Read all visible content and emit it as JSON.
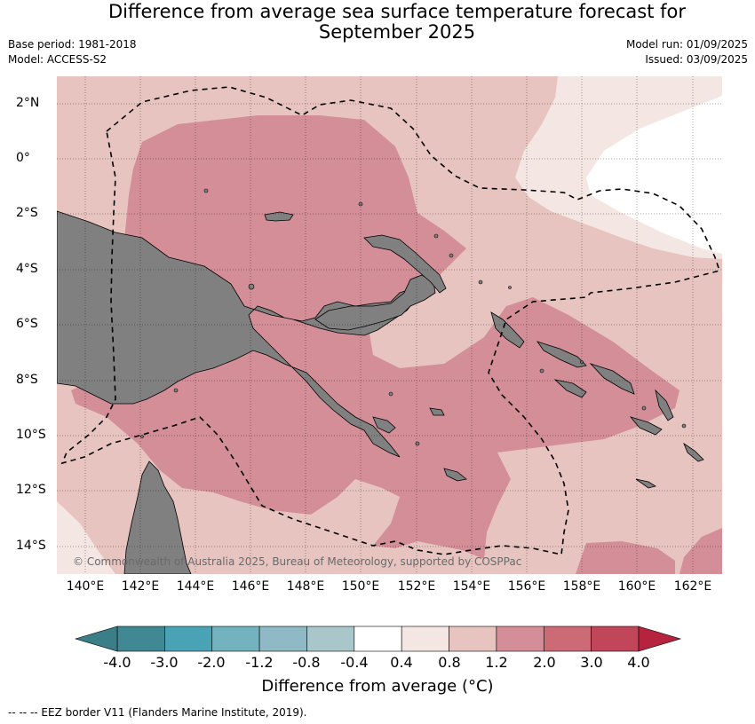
{
  "title_line1": "Difference from average sea surface temperature forecast for",
  "title_line2": "September 2025",
  "base_period": "Base period: 1981-2018",
  "model": "Model: ACCESS-S2",
  "model_run": "Model run: 01/09/2025",
  "issued": "Issued: 03/09/2025",
  "lat_labels": [
    "2°N",
    "0°",
    "2°S",
    "4°S",
    "6°S",
    "8°S",
    "10°S",
    "12°S",
    "14°S"
  ],
  "lon_labels": [
    "140°E",
    "142°E",
    "144°E",
    "146°E",
    "148°E",
    "150°E",
    "152°E",
    "154°E",
    "156°E",
    "158°E",
    "160°E",
    "162°E"
  ],
  "credit": "© Commonwealth of Australia 2025, Bureau of Meteorology, supported by COSPPac",
  "colorbar": {
    "ticks": [
      "-4.0",
      "-3.0",
      "-2.0",
      "-1.2",
      "-0.8",
      "-0.4",
      "0.4",
      "0.8",
      "1.2",
      "2.0",
      "3.0",
      "4.0"
    ],
    "colors": [
      "#418895",
      "#4aa3b4",
      "#73b3c0",
      "#8fb9c5",
      "#a9c6cb",
      "#c8d9db",
      "#ffffff",
      "#f4e6e3",
      "#e7c4bf",
      "#d38e98",
      "#cc6a75",
      "#c24659"
    ],
    "under_color": "#3a7e88",
    "over_color": "#b5233e",
    "label": "Difference from average (°C)"
  },
  "colors": {
    "land": "#808080",
    "bin_0_4_0_8": "#f4e6e3",
    "bin_0_8_1_2": "#e7c4bf",
    "bin_1_2_2_0": "#d38e98"
  },
  "footnote": "-- -- -- EEZ border V11 (Flanders Marine Institute, 2019)."
}
